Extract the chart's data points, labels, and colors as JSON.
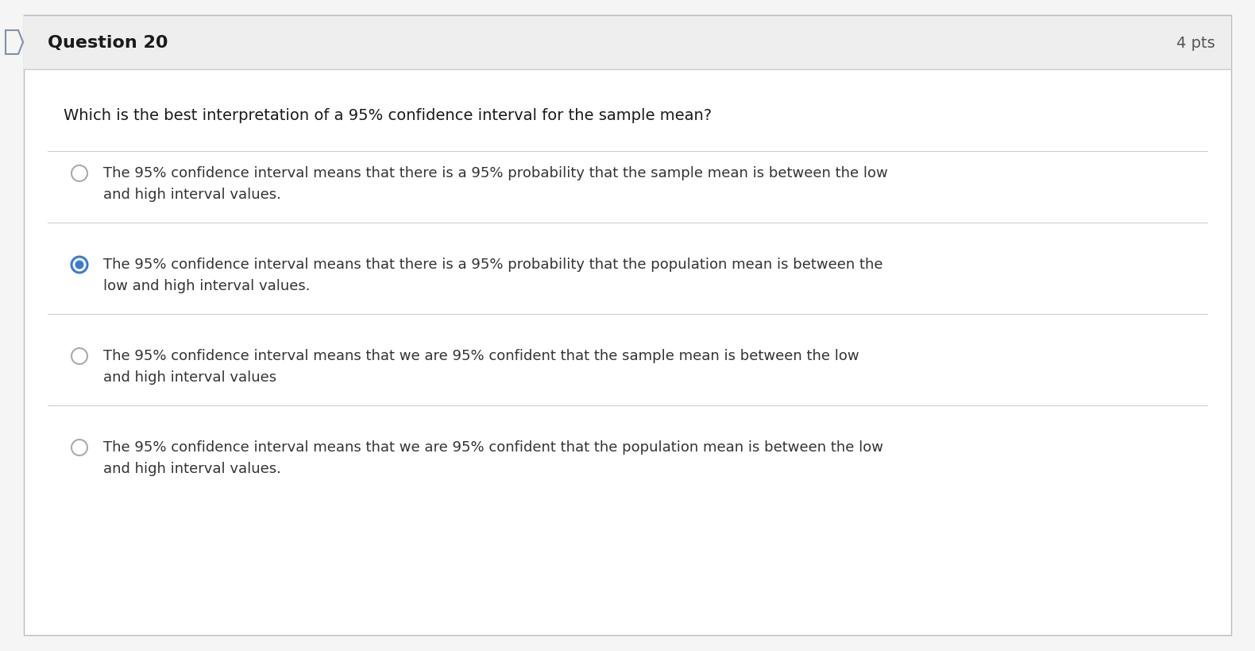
{
  "title": "Question 20",
  "pts": "4 pts",
  "question": "Which is the best interpretation of a 95% confidence interval for the sample mean?",
  "options": [
    {
      "text": "The 95% confidence interval means that there is a 95% probability that the sample mean is between the low\nand high interval values.",
      "selected": false
    },
    {
      "text": "The 95% confidence interval means that there is a 95% probability that the population mean is between the\nlow and high interval values.",
      "selected": true
    },
    {
      "text": "The 95% confidence interval means that we are 95% confident that the sample mean is between the low\nand high interval values",
      "selected": false
    },
    {
      "text": "The 95% confidence interval means that we are 95% confident that the population mean is between the low\nand high interval values.",
      "selected": false
    }
  ],
  "bg_color": "#ffffff",
  "outer_bg": "#f5f5f5",
  "header_bg": "#eeeeee",
  "header_text_color": "#1a1a1a",
  "question_text_color": "#1a1a1a",
  "option_text_color": "#333333",
  "radio_color": "#3a7bd5",
  "radio_fill": "#3a7bd5",
  "separator_color": "#cccccc",
  "pts_color": "#555555",
  "outer_border_color": "#bbbbbb",
  "header_border_color": "#cccccc",
  "title_fontsize": 16,
  "pts_fontsize": 14,
  "question_fontsize": 14,
  "option_fontsize": 13,
  "icon_color": "#8090a8"
}
